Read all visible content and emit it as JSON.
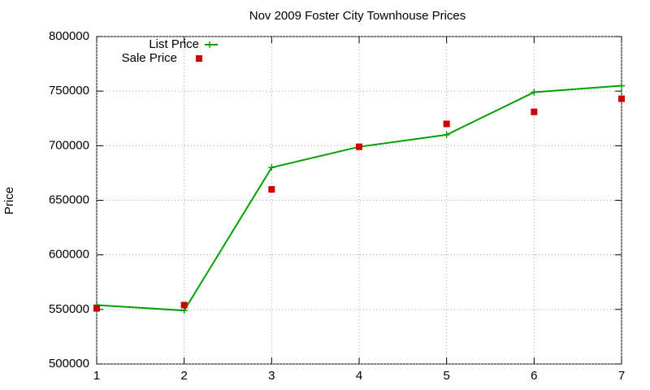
{
  "chart_data": {
    "type": "line",
    "title": "Nov 2009 Foster City Townhouse Prices",
    "y_label": "Price",
    "x": [
      1,
      2,
      3,
      4,
      5,
      6,
      7
    ],
    "series": [
      {
        "name": "List Price",
        "color": "#00a000",
        "style": "linespoints",
        "marker": "plus",
        "values": [
          554000,
          549000,
          680000,
          699000,
          710000,
          749000,
          755000
        ]
      },
      {
        "name": "Sale Price",
        "color": "#cc0000",
        "style": "points",
        "marker": "square",
        "values": [
          551000,
          554000,
          660000,
          699000,
          720000,
          731000,
          743000
        ]
      }
    ],
    "xlim": [
      1,
      7
    ],
    "xticks": [
      1,
      2,
      3,
      4,
      5,
      6,
      7
    ],
    "ylim": [
      500000,
      800000
    ],
    "yticks": [
      500000,
      550000,
      600000,
      650000,
      700000,
      750000,
      800000
    ],
    "grid": true,
    "legend": "top-left"
  }
}
